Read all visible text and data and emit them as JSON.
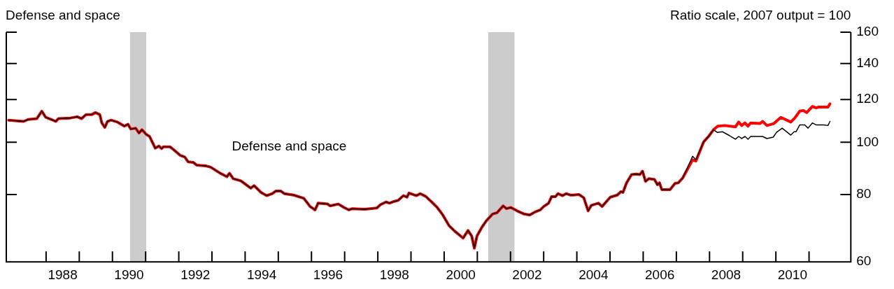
{
  "chart_data": {
    "type": "line",
    "title": "Defense and space",
    "ylabel": "Ratio scale, 2007 output = 100",
    "log": true,
    "grid": false,
    "legend": false,
    "marker": "none",
    "line_style": "solid",
    "xlim": [
      1986.8,
      2012.26
    ],
    "xticks": [
      {
        "value": 1988,
        "label": null
      },
      {
        "value": 1988.5,
        "label": "1988"
      },
      {
        "value": 1989,
        "label": null
      },
      {
        "value": 1990,
        "label": null
      },
      {
        "value": 1990.5,
        "label": "1990"
      },
      {
        "value": 1991,
        "label": null
      },
      {
        "value": 1992,
        "label": null
      },
      {
        "value": 1992.5,
        "label": "1992"
      },
      {
        "value": 1993,
        "label": null
      },
      {
        "value": 1994,
        "label": null
      },
      {
        "value": 1994.5,
        "label": "1994"
      },
      {
        "value": 1995,
        "label": null
      },
      {
        "value": 1996,
        "label": null
      },
      {
        "value": 1996.5,
        "label": "1996"
      },
      {
        "value": 1997,
        "label": null
      },
      {
        "value": 1998,
        "label": null
      },
      {
        "value": 1998.5,
        "label": "1998"
      },
      {
        "value": 1999,
        "label": null
      },
      {
        "value": 2000,
        "label": null
      },
      {
        "value": 2000.5,
        "label": "2000"
      },
      {
        "value": 2001,
        "label": null
      },
      {
        "value": 2002,
        "label": null
      },
      {
        "value": 2002.5,
        "label": "2002"
      },
      {
        "value": 2003,
        "label": null
      },
      {
        "value": 2004,
        "label": null
      },
      {
        "value": 2004.5,
        "label": "2004"
      },
      {
        "value": 2005,
        "label": null
      },
      {
        "value": 2006,
        "label": null
      },
      {
        "value": 2006.5,
        "label": "2006"
      },
      {
        "value": 2007,
        "label": null
      },
      {
        "value": 2008,
        "label": null
      },
      {
        "value": 2008.5,
        "label": "2008"
      },
      {
        "value": 2009,
        "label": null
      },
      {
        "value": 2010,
        "label": null
      },
      {
        "value": 2010.5,
        "label": "2010"
      },
      {
        "value": 2011,
        "label": null
      }
    ],
    "ylim": [
      60,
      160
    ],
    "yticks": [
      60,
      80,
      100,
      120,
      140,
      160
    ],
    "bands": [
      {
        "axis": "x",
        "from": 1990.53,
        "to": 1991.02,
        "color": "#cccccc"
      },
      {
        "axis": "x",
        "from": 2001.33,
        "to": 2002.12,
        "color": "#cccccc"
      }
    ],
    "annotations": [
      "Defense and space"
    ],
    "series": [
      {
        "color": "#ff0000",
        "x": [
          1986.87,
          1987.32,
          1987.46,
          1987.72,
          1987.87,
          1987.99,
          1988.16,
          1988.29,
          1988.37,
          1988.73,
          1988.94,
          1989.07,
          1989.2,
          1989.37,
          1989.49,
          1989.62,
          1989.68,
          1989.77,
          1989.85,
          1989.96,
          1990.15,
          1990.36,
          1990.47,
          1990.55,
          1990.7,
          1990.8,
          1990.89,
          1991.02,
          1991.12,
          1991.29,
          1991.4,
          1991.48,
          1991.54,
          1991.73,
          1991.86,
          1992.05,
          1992.18,
          1992.28,
          1992.43,
          1992.54,
          1992.81,
          1992.96,
          1993.21,
          1993.45,
          1993.53,
          1993.64,
          1993.87,
          1994.17,
          1994.27,
          1994.48,
          1994.65,
          1994.82,
          1994.93,
          1995.07,
          1995.18,
          1995.46,
          1995.77,
          1995.96,
          1996.11,
          1996.2,
          1996.49,
          1996.56,
          1996.81,
          1996.98,
          1997.13,
          1997.23,
          1997.61,
          1997.97,
          1998.08,
          1998.25,
          1998.35,
          1998.5,
          1998.61,
          1998.77,
          1998.88,
          1998.94,
          1999.16,
          1999.28,
          1999.45,
          1999.66,
          1999.79,
          1999.94,
          2000.15,
          2000.32,
          2000.57,
          2000.72,
          2000.83,
          2000.91,
          2000.99,
          2001.14,
          2001.27,
          2001.46,
          2001.59,
          2001.78,
          2001.88,
          2002.01,
          2002.2,
          2002.41,
          2002.58,
          2002.73,
          2002.9,
          2003.0,
          2003.15,
          2003.24,
          2003.36,
          2003.43,
          2003.57,
          2003.68,
          2003.81,
          2003.89,
          2004.06,
          2004.21,
          2004.34,
          2004.44,
          2004.65,
          2004.76,
          2005.01,
          2005.22,
          2005.33,
          2005.39,
          2005.5,
          2005.65,
          2005.79,
          2005.9,
          2005.98,
          2006.07,
          2006.17,
          2006.34,
          2006.43,
          2006.49,
          2006.56,
          2006.75,
          2006.81,
          2006.96,
          2007.06,
          2007.19,
          2007.49,
          2007.59,
          2007.82,
          2007.97,
          2008.12,
          2008.25,
          2008.46,
          2008.78,
          2008.88,
          2008.97,
          2009.07,
          2009.16,
          2009.24,
          2009.52,
          2009.6,
          2009.73,
          2009.94,
          2010.15,
          2010.45,
          2010.57,
          2010.72,
          2010.83,
          2010.93,
          2011.1,
          2011.21,
          2011.29,
          2011.57,
          2011.63
        ],
        "values": [
          109.9,
          109.3,
          110.2,
          110.6,
          114.2,
          111.2,
          110.2,
          109.3,
          110.6,
          110.9,
          111.5,
          110.6,
          112.5,
          112.5,
          113.5,
          112.5,
          108.6,
          106.5,
          109.3,
          109.9,
          109.0,
          107.1,
          108.0,
          105.8,
          106.2,
          104.0,
          105.5,
          103.4,
          102.5,
          97.5,
          98.4,
          97.3,
          98.1,
          98.1,
          96.7,
          94.5,
          93.9,
          92.0,
          91.8,
          90.7,
          90.4,
          89.9,
          87.9,
          86.3,
          87.6,
          85.6,
          84.8,
          82.2,
          83.1,
          80.7,
          79.6,
          80.3,
          81.2,
          81.2,
          80.3,
          79.8,
          78.7,
          76.0,
          74.9,
          77.1,
          76.8,
          76.2,
          76.8,
          75.7,
          74.9,
          75.3,
          75.1,
          75.5,
          76.6,
          77.5,
          77.1,
          77.7,
          78.0,
          79.6,
          79.1,
          80.5,
          79.6,
          80.3,
          79.3,
          77.1,
          75.7,
          73.6,
          70.0,
          68.4,
          66.4,
          68.6,
          67.0,
          63.6,
          67.0,
          69.6,
          71.5,
          73.6,
          74.0,
          76.2,
          75.3,
          75.7,
          74.6,
          73.6,
          73.3,
          74.2,
          74.9,
          76.0,
          77.1,
          79.3,
          79.3,
          80.3,
          79.6,
          80.3,
          79.8,
          79.8,
          80.0,
          78.9,
          74.6,
          76.4,
          77.1,
          76.0,
          79.1,
          79.8,
          81.0,
          80.7,
          84.1,
          87.1,
          87.3,
          87.1,
          88.4,
          84.6,
          85.6,
          85.3,
          83.4,
          84.1,
          81.7,
          81.7,
          81.7,
          83.9,
          84.1,
          85.8,
          92.8,
          92.3,
          100.1,
          102.5,
          105.5,
          107.1,
          107.4,
          106.8,
          109.0,
          107.4,
          108.6,
          107.1,
          108.6,
          108.3,
          109.3,
          107.4,
          108.3,
          111.2,
          109.0,
          110.9,
          114.2,
          114.5,
          113.5,
          116.5,
          115.8,
          116.2,
          116.2,
          117.8
        ]
      },
      {
        "color": "#000000",
        "x": [
          1986.87,
          1987.32,
          1987.46,
          1987.72,
          1987.87,
          1987.99,
          1988.16,
          1988.29,
          1988.37,
          1988.73,
          1988.94,
          1989.07,
          1989.2,
          1989.37,
          1989.49,
          1989.62,
          1989.68,
          1989.77,
          1989.85,
          1989.96,
          1990.15,
          1990.36,
          1990.47,
          1990.55,
          1990.7,
          1990.8,
          1990.89,
          1991.02,
          1991.12,
          1991.29,
          1991.4,
          1991.48,
          1991.54,
          1991.73,
          1991.86,
          1992.05,
          1992.18,
          1992.28,
          1992.43,
          1992.54,
          1992.81,
          1992.96,
          1993.21,
          1993.45,
          1993.53,
          1993.64,
          1993.87,
          1994.17,
          1994.27,
          1994.48,
          1994.65,
          1994.82,
          1994.93,
          1995.07,
          1995.18,
          1995.46,
          1995.77,
          1995.96,
          1996.11,
          1996.2,
          1996.49,
          1996.56,
          1996.81,
          1996.98,
          1997.13,
          1997.23,
          1997.61,
          1997.97,
          1998.08,
          1998.25,
          1998.35,
          1998.5,
          1998.61,
          1998.77,
          1998.88,
          1998.94,
          1999.16,
          1999.28,
          1999.45,
          1999.66,
          1999.79,
          1999.94,
          2000.15,
          2000.32,
          2000.57,
          2000.72,
          2000.83,
          2000.91,
          2000.99,
          2001.14,
          2001.27,
          2001.46,
          2001.59,
          2001.78,
          2001.88,
          2002.01,
          2002.2,
          2002.41,
          2002.58,
          2002.73,
          2002.9,
          2003.0,
          2003.15,
          2003.24,
          2003.36,
          2003.43,
          2003.57,
          2003.68,
          2003.81,
          2003.89,
          2004.06,
          2004.21,
          2004.34,
          2004.44,
          2004.65,
          2004.76,
          2005.01,
          2005.22,
          2005.33,
          2005.39,
          2005.5,
          2005.65,
          2005.79,
          2005.9,
          2005.98,
          2006.07,
          2006.17,
          2006.34,
          2006.43,
          2006.49,
          2006.56,
          2006.75,
          2006.81,
          2006.96,
          2007.06,
          2007.19,
          2007.49,
          2007.59,
          2007.82,
          2007.97,
          2008.12,
          2008.23,
          2008.39,
          2008.61,
          2008.78,
          2008.88,
          2008.97,
          2009.07,
          2009.16,
          2009.24,
          2009.6,
          2009.73,
          2009.92,
          2010.02,
          2010.19,
          2010.45,
          2010.55,
          2010.61,
          2010.72,
          2010.87,
          2010.97,
          2011.1,
          2011.21,
          2011.44,
          2011.57,
          2011.63
        ],
        "values": [
          109.9,
          109.3,
          110.2,
          110.6,
          114.2,
          111.2,
          110.2,
          109.3,
          110.6,
          110.9,
          111.5,
          110.6,
          112.5,
          112.5,
          113.5,
          112.5,
          108.6,
          106.5,
          109.3,
          109.9,
          109.0,
          107.1,
          108.0,
          105.8,
          106.2,
          104.0,
          105.5,
          103.4,
          102.5,
          97.5,
          98.4,
          97.3,
          98.1,
          98.1,
          96.7,
          94.5,
          93.9,
          92.0,
          91.8,
          90.7,
          90.4,
          89.9,
          87.9,
          86.3,
          87.6,
          85.6,
          84.8,
          82.2,
          83.1,
          80.7,
          79.6,
          80.3,
          81.2,
          81.2,
          80.3,
          79.8,
          78.7,
          76.0,
          74.9,
          77.1,
          76.8,
          76.2,
          76.8,
          75.7,
          74.9,
          75.3,
          75.1,
          75.5,
          76.6,
          77.5,
          77.1,
          77.7,
          78.0,
          79.6,
          79.1,
          80.5,
          79.6,
          80.3,
          79.3,
          77.1,
          75.7,
          73.6,
          70.0,
          68.4,
          66.4,
          68.6,
          67.0,
          63.6,
          67.0,
          69.6,
          71.5,
          73.6,
          74.0,
          76.2,
          75.3,
          75.7,
          74.6,
          73.6,
          73.3,
          74.2,
          74.9,
          76.0,
          77.1,
          79.3,
          79.3,
          80.3,
          79.6,
          80.3,
          79.8,
          79.8,
          80.0,
          78.9,
          74.6,
          76.4,
          77.1,
          76.0,
          79.1,
          79.8,
          81.0,
          80.7,
          84.1,
          87.1,
          87.3,
          87.1,
          88.4,
          84.6,
          85.6,
          85.3,
          83.4,
          84.1,
          81.7,
          81.7,
          81.7,
          83.9,
          84.1,
          85.8,
          94.2,
          92.8,
          100.1,
          102.5,
          105.5,
          104.3,
          104.6,
          102.8,
          101.3,
          102.5,
          101.6,
          102.5,
          101.3,
          102.5,
          102.5,
          101.6,
          102.2,
          104.3,
          106.2,
          103.1,
          104.6,
          104.6,
          107.7,
          107.7,
          106.2,
          108.6,
          107.7,
          107.7,
          107.4,
          109.3
        ]
      }
    ]
  }
}
